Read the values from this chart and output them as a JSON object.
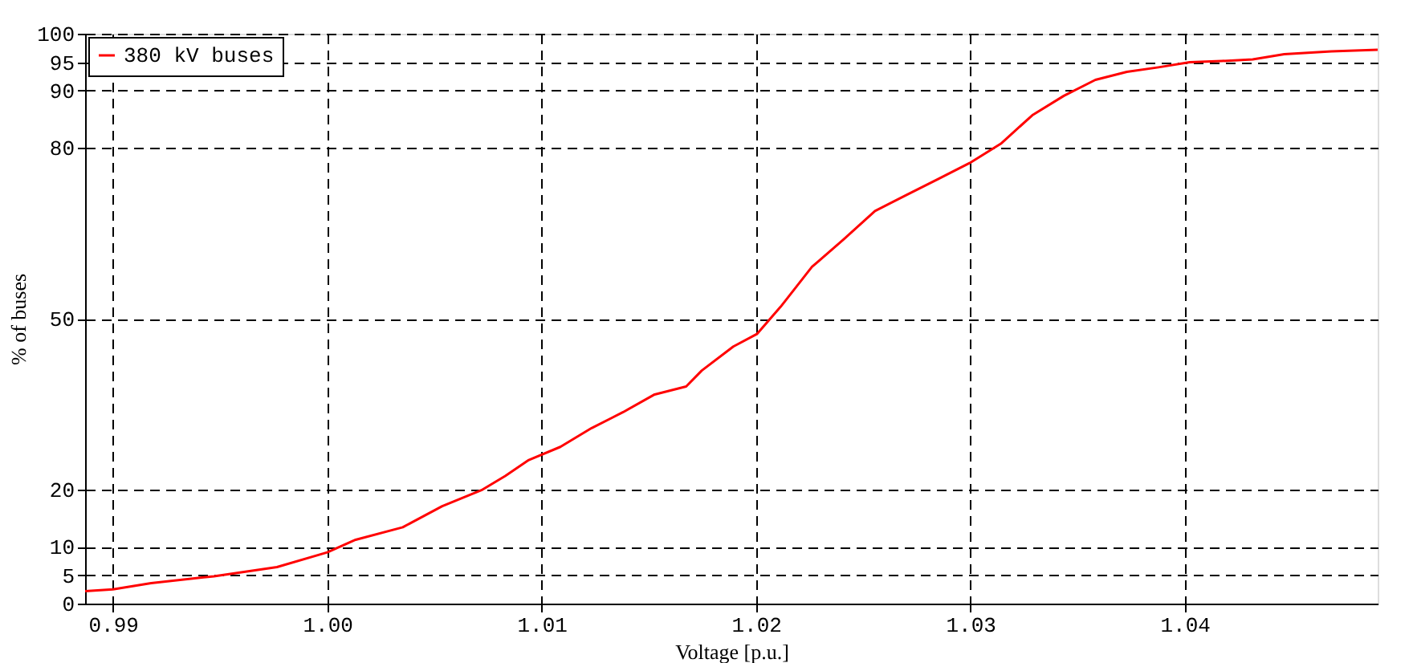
{
  "chart_data": {
    "type": "line",
    "xlabel": "Voltage [p.u.]",
    "ylabel": "% of buses",
    "xlim": [
      0.9887,
      1.049
    ],
    "xticks": [
      {
        "value": 0.99,
        "label": "0.99"
      },
      {
        "value": 1.0,
        "label": "1.00"
      },
      1.01,
      {
        "value": 1.02,
        "label": "1.02"
      },
      1.03,
      1.04
    ],
    "ylim": [
      0,
      100
    ],
    "yticks": [
      0,
      5,
      10,
      20,
      50,
      80,
      90,
      95,
      100
    ],
    "grid": true,
    "legend": "top left",
    "line_style": "solid",
    "marker": "none",
    "series": [
      {
        "name": "380 kV buses",
        "color": "#ff0000",
        "x": [
          0.9887,
          0.99,
          0.99178,
          0.99471,
          0.99765,
          1.0,
          1.00132,
          1.00352,
          1.00536,
          1.00719,
          1.0083,
          1.0094,
          1.01087,
          1.01233,
          1.0138,
          1.01527,
          1.01674,
          1.01747,
          1.01894,
          1.02004,
          1.02115,
          1.02261,
          1.02408,
          1.02555,
          1.02702,
          1.02849,
          1.02996,
          1.03142,
          1.03289,
          1.03436,
          1.03583,
          1.0373,
          1.03877,
          1.04023,
          1.0417,
          1.04317,
          1.04464,
          1.04684,
          1.049
        ],
        "values": [
          2.2,
          2.5,
          3.6,
          4.8,
          6.4,
          9.0,
          11.2,
          13.4,
          17.1,
          19.9,
          22.4,
          25.2,
          27.5,
          30.8,
          33.6,
          36.7,
          38.1,
          40.9,
          45.1,
          47.3,
          52.1,
          59.1,
          63.9,
          68.9,
          71.7,
          74.5,
          77.3,
          80.7,
          85.7,
          89.1,
          91.9,
          93.3,
          94.1,
          95.0,
          95.2,
          95.5,
          96.4,
          96.9,
          97.2
        ]
      }
    ]
  }
}
